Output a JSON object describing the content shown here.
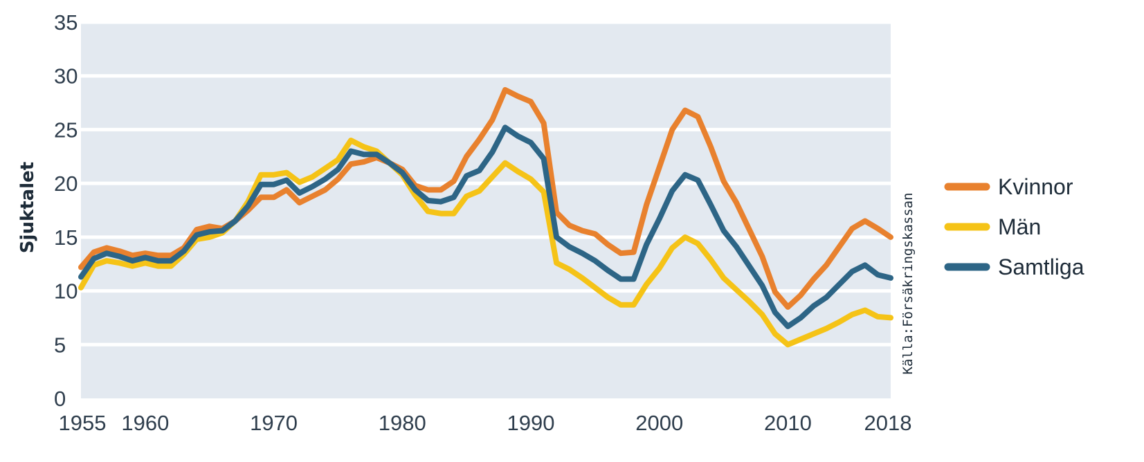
{
  "chart_data": {
    "type": "line",
    "title": "",
    "xlabel": "",
    "ylabel": "Sjuktalet",
    "xlim": [
      1955,
      2018
    ],
    "ylim": [
      0,
      35
    ],
    "yticks": [
      0,
      5,
      10,
      15,
      20,
      25,
      30,
      35
    ],
    "xtick_labels": [
      "1955",
      "1960",
      "1970",
      "1980",
      "1990",
      "2000",
      "2010",
      "2018"
    ],
    "grid": "horizontal",
    "legend_position": "right",
    "source_note": "Källa:Försäkringskassan",
    "series": [
      {
        "name": "Kvinnor",
        "color": "#e8812e",
        "points": [
          [
            1955,
            12.2
          ],
          [
            1956,
            13.6
          ],
          [
            1957,
            14.0
          ],
          [
            1958,
            13.7
          ],
          [
            1959,
            13.3
          ],
          [
            1960,
            13.5
          ],
          [
            1961,
            13.3
          ],
          [
            1962,
            13.3
          ],
          [
            1963,
            14.0
          ],
          [
            1964,
            15.7
          ],
          [
            1965,
            16.0
          ],
          [
            1966,
            15.8
          ],
          [
            1967,
            16.5
          ],
          [
            1968,
            17.5
          ],
          [
            1969,
            18.7
          ],
          [
            1970,
            18.7
          ],
          [
            1971,
            19.4
          ],
          [
            1972,
            18.2
          ],
          [
            1973,
            18.8
          ],
          [
            1974,
            19.4
          ],
          [
            1975,
            20.4
          ],
          [
            1976,
            21.8
          ],
          [
            1977,
            22.0
          ],
          [
            1978,
            22.4
          ],
          [
            1979,
            21.9
          ],
          [
            1980,
            21.3
          ],
          [
            1981,
            19.8
          ],
          [
            1982,
            19.4
          ],
          [
            1983,
            19.4
          ],
          [
            1984,
            20.2
          ],
          [
            1985,
            22.5
          ],
          [
            1986,
            24.1
          ],
          [
            1987,
            25.9
          ],
          [
            1988,
            28.7
          ],
          [
            1989,
            28.1
          ],
          [
            1990,
            27.6
          ],
          [
            1991,
            25.6
          ],
          [
            1992,
            17.3
          ],
          [
            1993,
            16.1
          ],
          [
            1994,
            15.6
          ],
          [
            1995,
            15.3
          ],
          [
            1996,
            14.3
          ],
          [
            1997,
            13.5
          ],
          [
            1998,
            13.6
          ],
          [
            1999,
            18.0
          ],
          [
            2000,
            21.5
          ],
          [
            2001,
            25.0
          ],
          [
            2002,
            26.8
          ],
          [
            2003,
            26.2
          ],
          [
            2004,
            23.4
          ],
          [
            2005,
            20.2
          ],
          [
            2006,
            18.2
          ],
          [
            2007,
            15.7
          ],
          [
            2008,
            13.2
          ],
          [
            2009,
            9.9
          ],
          [
            2010,
            8.5
          ],
          [
            2011,
            9.6
          ],
          [
            2012,
            11.1
          ],
          [
            2013,
            12.4
          ],
          [
            2014,
            14.1
          ],
          [
            2015,
            15.8
          ],
          [
            2016,
            16.5
          ],
          [
            2017,
            15.8
          ],
          [
            2018,
            15.0
          ]
        ]
      },
      {
        "name": "Män",
        "color": "#f5c317",
        "points": [
          [
            1955,
            10.3
          ],
          [
            1956,
            12.4
          ],
          [
            1957,
            12.8
          ],
          [
            1958,
            12.6
          ],
          [
            1959,
            12.3
          ],
          [
            1960,
            12.6
          ],
          [
            1961,
            12.3
          ],
          [
            1962,
            12.3
          ],
          [
            1963,
            13.4
          ],
          [
            1964,
            14.8
          ],
          [
            1965,
            15.0
          ],
          [
            1966,
            15.4
          ],
          [
            1967,
            16.5
          ],
          [
            1968,
            18.3
          ],
          [
            1969,
            20.8
          ],
          [
            1970,
            20.8
          ],
          [
            1971,
            21.0
          ],
          [
            1972,
            20.1
          ],
          [
            1973,
            20.6
          ],
          [
            1974,
            21.4
          ],
          [
            1975,
            22.2
          ],
          [
            1976,
            24.0
          ],
          [
            1977,
            23.4
          ],
          [
            1978,
            23.0
          ],
          [
            1979,
            21.9
          ],
          [
            1980,
            20.8
          ],
          [
            1981,
            18.9
          ],
          [
            1982,
            17.4
          ],
          [
            1983,
            17.2
          ],
          [
            1984,
            17.2
          ],
          [
            1985,
            18.8
          ],
          [
            1986,
            19.3
          ],
          [
            1987,
            20.6
          ],
          [
            1988,
            21.9
          ],
          [
            1989,
            21.1
          ],
          [
            1990,
            20.4
          ],
          [
            1991,
            19.2
          ],
          [
            1992,
            12.6
          ],
          [
            1993,
            12.0
          ],
          [
            1994,
            11.2
          ],
          [
            1995,
            10.3
          ],
          [
            1996,
            9.4
          ],
          [
            1997,
            8.7
          ],
          [
            1998,
            8.7
          ],
          [
            1999,
            10.6
          ],
          [
            2000,
            12.1
          ],
          [
            2001,
            14.0
          ],
          [
            2002,
            15.0
          ],
          [
            2003,
            14.4
          ],
          [
            2004,
            12.9
          ],
          [
            2005,
            11.2
          ],
          [
            2006,
            10.1
          ],
          [
            2007,
            9.0
          ],
          [
            2008,
            7.8
          ],
          [
            2009,
            6.0
          ],
          [
            2010,
            5.0
          ],
          [
            2011,
            5.5
          ],
          [
            2012,
            6.0
          ],
          [
            2013,
            6.5
          ],
          [
            2014,
            7.1
          ],
          [
            2015,
            7.8
          ],
          [
            2016,
            8.2
          ],
          [
            2017,
            7.6
          ],
          [
            2018,
            7.5
          ]
        ]
      },
      {
        "name": "Samtliga",
        "color": "#2d6586",
        "points": [
          [
            1955,
            11.3
          ],
          [
            1956,
            13.0
          ],
          [
            1957,
            13.5
          ],
          [
            1958,
            13.2
          ],
          [
            1959,
            12.8
          ],
          [
            1960,
            13.1
          ],
          [
            1961,
            12.8
          ],
          [
            1962,
            12.8
          ],
          [
            1963,
            13.7
          ],
          [
            1964,
            15.2
          ],
          [
            1965,
            15.5
          ],
          [
            1966,
            15.6
          ],
          [
            1967,
            16.5
          ],
          [
            1968,
            17.9
          ],
          [
            1969,
            19.9
          ],
          [
            1970,
            19.9
          ],
          [
            1971,
            20.3
          ],
          [
            1972,
            19.1
          ],
          [
            1973,
            19.7
          ],
          [
            1974,
            20.4
          ],
          [
            1975,
            21.3
          ],
          [
            1976,
            23.0
          ],
          [
            1977,
            22.7
          ],
          [
            1978,
            22.7
          ],
          [
            1979,
            21.9
          ],
          [
            1980,
            21.0
          ],
          [
            1981,
            19.4
          ],
          [
            1982,
            18.4
          ],
          [
            1983,
            18.3
          ],
          [
            1984,
            18.7
          ],
          [
            1985,
            20.7
          ],
          [
            1986,
            21.2
          ],
          [
            1987,
            22.9
          ],
          [
            1988,
            25.2
          ],
          [
            1989,
            24.4
          ],
          [
            1990,
            23.8
          ],
          [
            1991,
            22.3
          ],
          [
            1992,
            15.0
          ],
          [
            1993,
            14.1
          ],
          [
            1994,
            13.5
          ],
          [
            1995,
            12.8
          ],
          [
            1996,
            11.9
          ],
          [
            1997,
            11.1
          ],
          [
            1998,
            11.1
          ],
          [
            1999,
            14.3
          ],
          [
            2000,
            16.7
          ],
          [
            2001,
            19.3
          ],
          [
            2002,
            20.8
          ],
          [
            2003,
            20.3
          ],
          [
            2004,
            18.0
          ],
          [
            2005,
            15.6
          ],
          [
            2006,
            14.1
          ],
          [
            2007,
            12.3
          ],
          [
            2008,
            10.5
          ],
          [
            2009,
            8.0
          ],
          [
            2010,
            6.7
          ],
          [
            2011,
            7.5
          ],
          [
            2012,
            8.6
          ],
          [
            2013,
            9.4
          ],
          [
            2014,
            10.6
          ],
          [
            2015,
            11.8
          ],
          [
            2016,
            12.4
          ],
          [
            2017,
            11.5
          ],
          [
            2018,
            11.2
          ]
        ]
      }
    ]
  }
}
